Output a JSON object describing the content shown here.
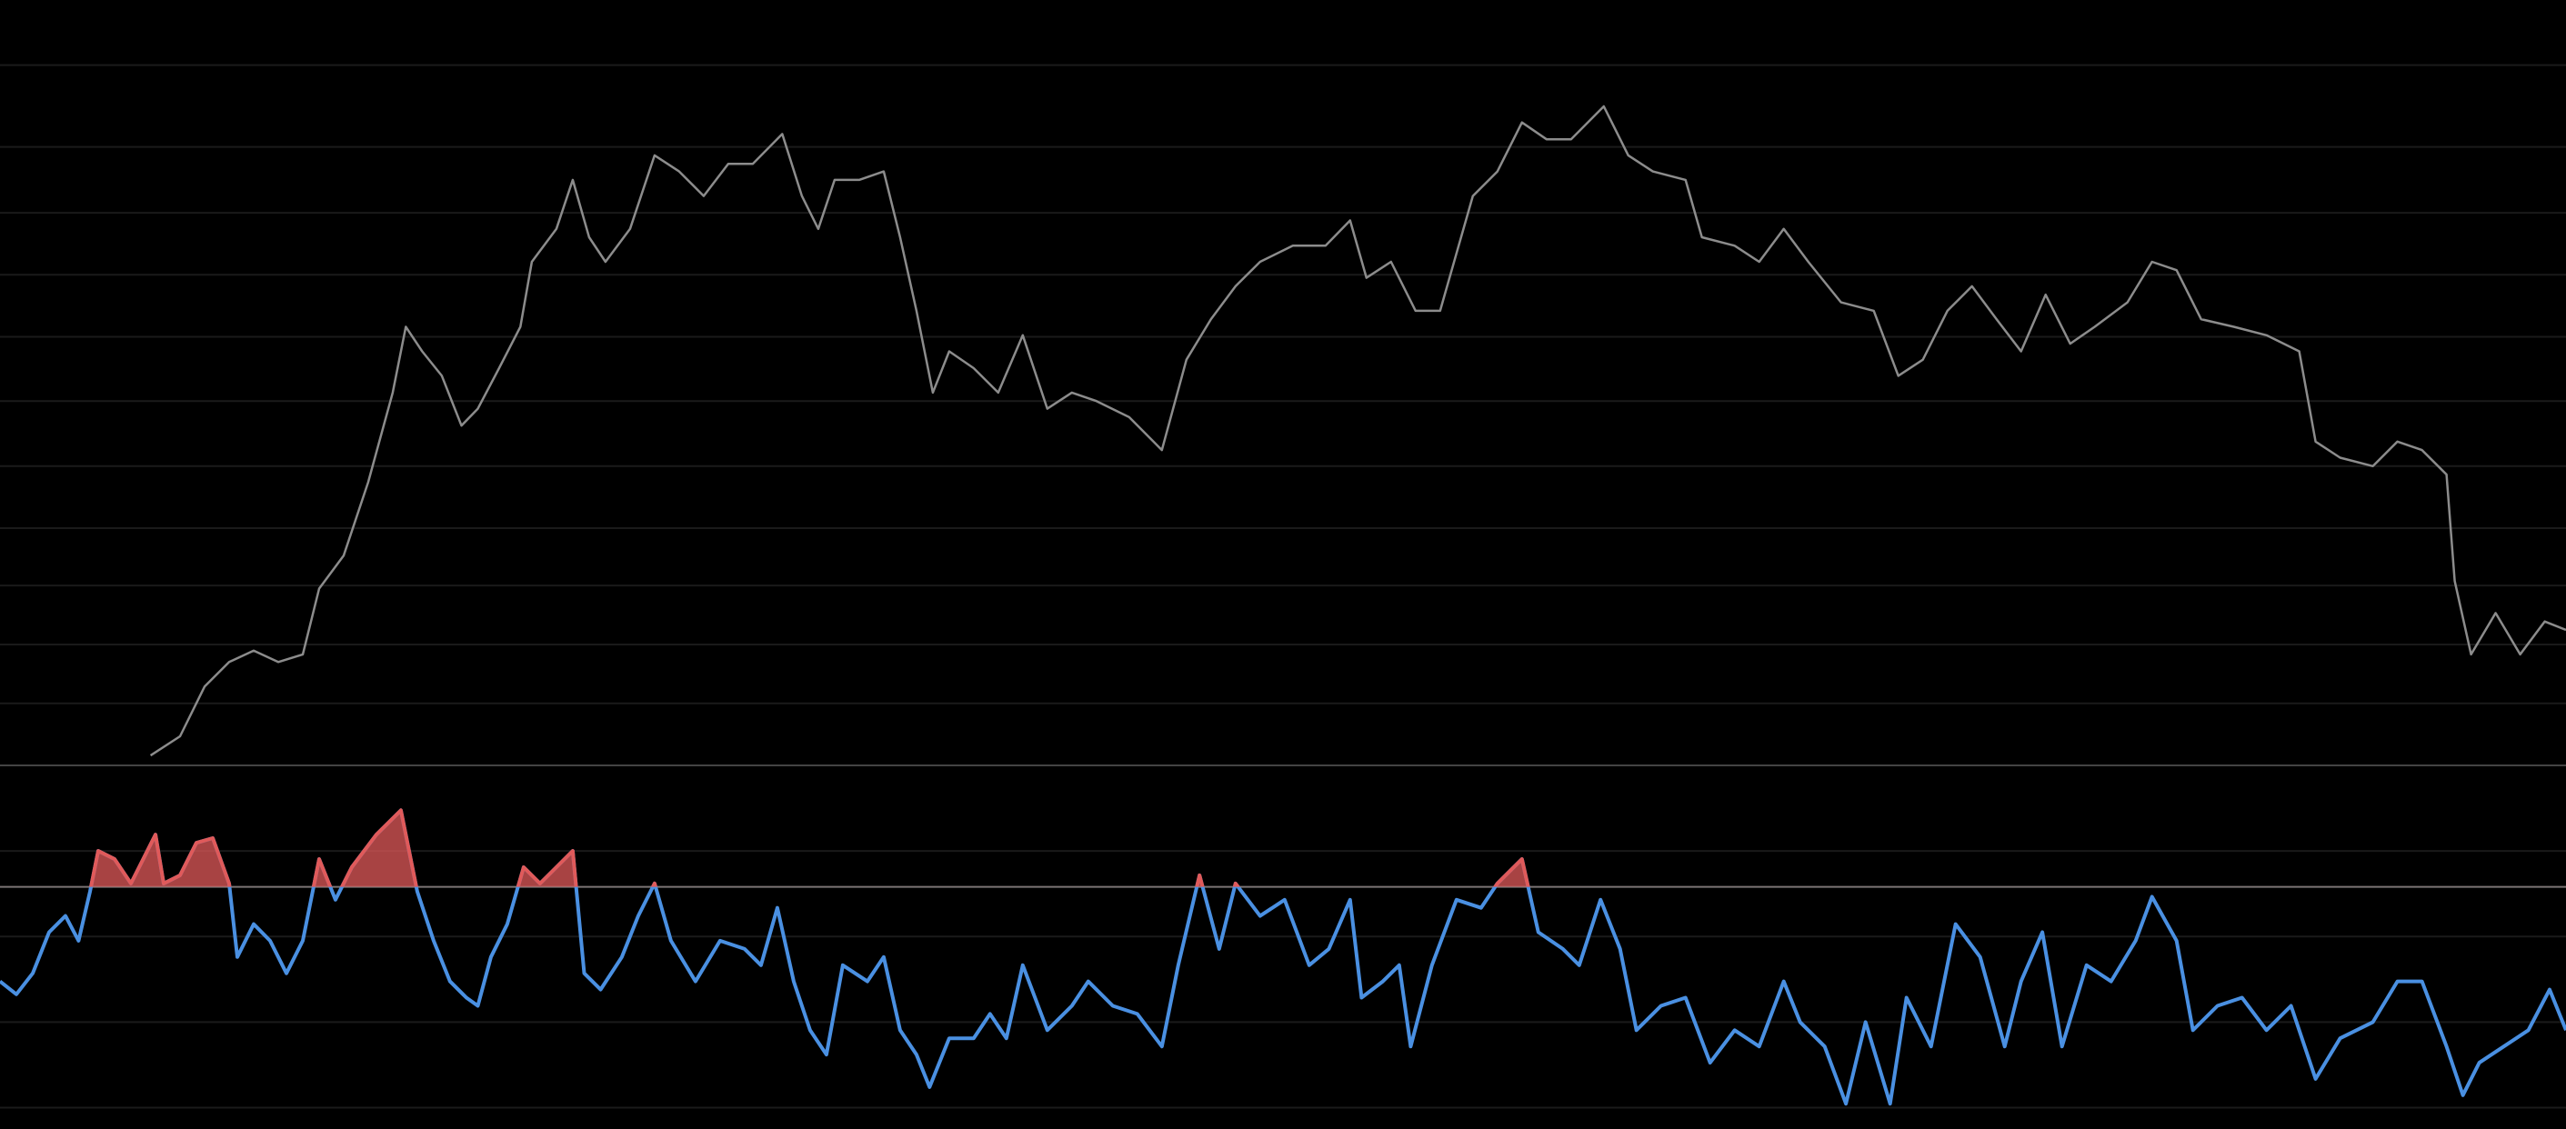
{
  "chart_data": [
    {
      "type": "line",
      "color": "#8c8c8c",
      "grid": true,
      "xlim": [
        0,
        1568
      ],
      "ylim": [
        0,
        100
      ],
      "yticks": [
        91.5,
        80.8,
        72.2,
        64.1,
        56,
        47.6,
        39.1,
        31,
        23.5,
        15.8,
        8.1
      ],
      "x": [
        92,
        110,
        125,
        140,
        155,
        170,
        185,
        195,
        210,
        225,
        240,
        248,
        258,
        270,
        282,
        292,
        305,
        318,
        325,
        340,
        350,
        360,
        370,
        385,
        400,
        415,
        430,
        445,
        460,
        478,
        490,
        500,
        510,
        525,
        540,
        550,
        560,
        570,
        580,
        595,
        610,
        625,
        640,
        655,
        670,
        690,
        710,
        725,
        740,
        755,
        770,
        790,
        810,
        825,
        835,
        850,
        865,
        880,
        890,
        900,
        915,
        930,
        945,
        960,
        980,
        995,
        1010,
        1030,
        1040,
        1060,
        1075,
        1090,
        1105,
        1125,
        1145,
        1160,
        1175,
        1190,
        1205,
        1220,
        1235,
        1250,
        1265,
        1280,
        1300,
        1315,
        1330,
        1345,
        1365,
        1385,
        1405,
        1415,
        1430,
        1450,
        1465,
        1480,
        1495,
        1500,
        1510,
        1525,
        1540,
        1555,
        1568
      ],
      "values": [
        1.3,
        3.8,
        10.3,
        13.5,
        15,
        13.5,
        14.5,
        23.1,
        27.4,
        37,
        48.7,
        57.3,
        54.1,
        50.9,
        44.4,
        46.6,
        51.9,
        57.3,
        65.8,
        70.1,
        76.5,
        69,
        65.8,
        70.1,
        79.7,
        77.6,
        74.4,
        78.6,
        78.6,
        82.5,
        74.4,
        70.1,
        76.5,
        76.5,
        77.6,
        69,
        59.4,
        48.7,
        54.1,
        51.9,
        48.7,
        56.2,
        46.6,
        48.7,
        47.6,
        45.5,
        41.2,
        53,
        58.3,
        62.6,
        65.8,
        67.9,
        67.9,
        71.2,
        63.7,
        65.8,
        59.4,
        59.4,
        66.9,
        74.4,
        77.6,
        84,
        81.8,
        81.8,
        86.1,
        79.7,
        77.6,
        76.5,
        69,
        67.9,
        65.8,
        70.1,
        65.8,
        60.5,
        59.4,
        50.9,
        53,
        59.4,
        62.6,
        58.3,
        54.1,
        61.5,
        55.1,
        57.3,
        60.5,
        65.8,
        64.7,
        58.3,
        57.3,
        56.2,
        54.1,
        42.3,
        40.2,
        39.1,
        42.3,
        41.2,
        38,
        24.1,
        14.5,
        19.9,
        14.5,
        18.8,
        17.7
      ]
    },
    {
      "type": "oscillator",
      "color": "#4a90e2",
      "above_color": "#e05a5a",
      "threshold": 71.6,
      "grid": true,
      "xlim": [
        0,
        1568
      ],
      "ylim": [
        15,
        100
      ],
      "yticks": [
        80,
        60,
        40,
        20
      ],
      "x": [
        0,
        10,
        20,
        30,
        40,
        48,
        55,
        60,
        70,
        80,
        85,
        95,
        100,
        110,
        120,
        130,
        140,
        145,
        155,
        165,
        175,
        185,
        195,
        205,
        215,
        230,
        245,
        255,
        265,
        275,
        285,
        292,
        300,
        310,
        320,
        330,
        340,
        350,
        357,
        367,
        380,
        390,
        400,
        410,
        425,
        440,
        455,
        465,
        475,
        485,
        495,
        505,
        515,
        530,
        540,
        550,
        560,
        568,
        580,
        595,
        605,
        615,
        625,
        640,
        655,
        665,
        680,
        695,
        710,
        720,
        733,
        745,
        755,
        770,
        785,
        800,
        812,
        825,
        832,
        845,
        855,
        862,
        875,
        890,
        905,
        915,
        930,
        940,
        955,
        965,
        978,
        990,
        1000,
        1015,
        1030,
        1045,
        1060,
        1075,
        1090,
        1100,
        1115,
        1128,
        1140,
        1155,
        1165,
        1180,
        1195,
        1210,
        1225,
        1235,
        1248,
        1260,
        1275,
        1290,
        1305,
        1315,
        1330,
        1340,
        1355,
        1370,
        1385,
        1400,
        1415,
        1430,
        1450,
        1465,
        1480,
        1495,
        1505,
        1515,
        1530,
        1545,
        1558,
        1568
      ],
      "values": [
        49.5,
        46.5,
        51.4,
        61.0,
        64.8,
        59.0,
        70.5,
        80.0,
        78.1,
        72.4,
        76.2,
        83.8,
        72.4,
        74.3,
        81.9,
        83.0,
        72.4,
        55.2,
        62.9,
        59.0,
        51.4,
        59.0,
        78.1,
        68.6,
        76.2,
        83.8,
        89.5,
        70.5,
        59.0,
        49.5,
        45.7,
        43.8,
        55.2,
        62.9,
        76.2,
        72.4,
        76.2,
        80.0,
        51.4,
        47.6,
        55.2,
        64.8,
        72.4,
        59.0,
        49.5,
        59.0,
        57.1,
        53.3,
        66.7,
        49.5,
        38.1,
        32.4,
        53.3,
        49.5,
        55.2,
        38.1,
        32.4,
        24.8,
        36.2,
        36.2,
        41.9,
        36.2,
        53.3,
        38.1,
        43.8,
        49.5,
        43.8,
        41.9,
        34.3,
        53.3,
        74.3,
        57.1,
        72.4,
        64.8,
        68.6,
        53.3,
        57.1,
        68.6,
        45.7,
        49.5,
        53.3,
        34.3,
        53.3,
        68.6,
        66.7,
        72.4,
        78.1,
        61.0,
        57.1,
        53.3,
        68.6,
        57.1,
        38.1,
        43.8,
        45.7,
        30.5,
        38.1,
        34.3,
        49.5,
        40.0,
        34.3,
        20.9,
        40.0,
        20.9,
        45.7,
        34.3,
        62.9,
        55.2,
        34.3,
        49.5,
        61.0,
        34.3,
        53.3,
        49.5,
        59.0,
        69.3,
        59.0,
        38.1,
        43.8,
        45.7,
        38.1,
        43.8,
        26.7,
        36.2,
        40.0,
        49.5,
        49.5,
        34.3,
        22.9,
        30.5,
        34.3,
        38.1,
        47.6,
        38.1
      ]
    }
  ]
}
